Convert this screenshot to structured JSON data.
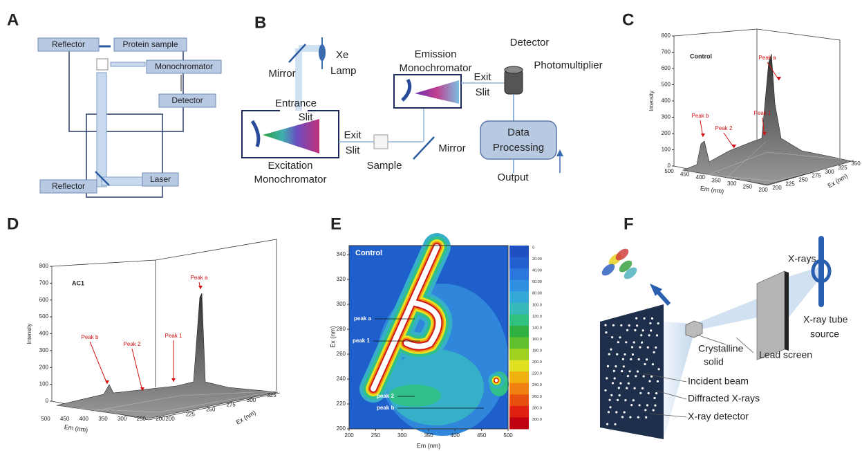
{
  "panel_a": {
    "label": "A",
    "reflector_top": "Reflector",
    "protein_sample": "Protein sample",
    "monochromator": "Monochromator",
    "detector": "Detector",
    "reflector_bottom": "Reflector",
    "laser": "Laser"
  },
  "panel_b": {
    "label": "B",
    "mirror_left": "Mirror",
    "xe_lamp": [
      "Xe",
      "Lamp"
    ],
    "entrance_slit": [
      "Entrance",
      "Slit"
    ],
    "exit_slit_left": [
      "Exit",
      "Slit"
    ],
    "excitation_monochromator": [
      "Excitation",
      "Monochromator"
    ],
    "sample": "Sample",
    "mirror_right": "Mirror",
    "emission_monochromator": [
      "Emission",
      "Monochromator"
    ],
    "exit_slit_right": [
      "Exit",
      "Slit"
    ],
    "detector": "Detector",
    "photomultiplier": "Photomultiplier",
    "data_processing": [
      "Data",
      "Processing"
    ],
    "output": "Output"
  },
  "panel_c": {
    "label": "C",
    "title": "Control",
    "y_label": "Intensity",
    "yticks": [
      0,
      100,
      200,
      300,
      400,
      500,
      600,
      700,
      800
    ],
    "x_label": "Em (nm)",
    "xticks": [
      500,
      450,
      400,
      350,
      300,
      250,
      200
    ],
    "z_label": "Ex (nm)",
    "zticks": [
      200,
      225,
      250,
      275,
      300,
      325,
      350
    ],
    "annotations": [
      "Peak a",
      "Peak b",
      "Peak 2",
      "Peak 1"
    ]
  },
  "panel_d": {
    "label": "D",
    "title": "AC1",
    "y_label": "Intensity",
    "yticks": [
      0,
      100,
      200,
      300,
      400,
      500,
      600,
      700,
      800
    ],
    "x_label": "Em (nm)",
    "xticks": [
      500,
      450,
      400,
      350,
      300,
      250,
      200
    ],
    "z_label": "Ex (nm)",
    "zticks": [
      200,
      225,
      250,
      275,
      300,
      325
    ],
    "annotations": [
      "Peak a",
      "Peak b",
      "Peak 2",
      "Peak 1"
    ]
  },
  "panel_e": {
    "label": "E",
    "title": "Control",
    "y_label": "Ex (nm)",
    "yticks": [
      200,
      220,
      240,
      260,
      280,
      300,
      320,
      340
    ],
    "x_label": "Em (nm)",
    "xticks": [
      200,
      250,
      300,
      350,
      400,
      450,
      500
    ],
    "colorbar_ticks": [
      "0",
      "20.00",
      "40.00",
      "60.00",
      "80.00",
      "100.0",
      "120.0",
      "140.0",
      "160.0",
      "180.0",
      "200.0",
      "220.0",
      "240.0",
      "260.0",
      "280.0",
      "300.0"
    ],
    "annotations": [
      "peak a",
      "peak 1",
      "peak 2",
      "peak b"
    ]
  },
  "panel_f": {
    "label": "F",
    "x_rays": "X-rays",
    "x_ray_tube_source": [
      "X-ray tube",
      "source"
    ],
    "crystalline_solid": [
      "Crystalline",
      "solid"
    ],
    "lead_screen": "Lead screen",
    "incident_beam": "Incident beam",
    "diffracted_x_rays": "Diffracted X-rays",
    "x_ray_detector": "X-ray detector"
  }
}
